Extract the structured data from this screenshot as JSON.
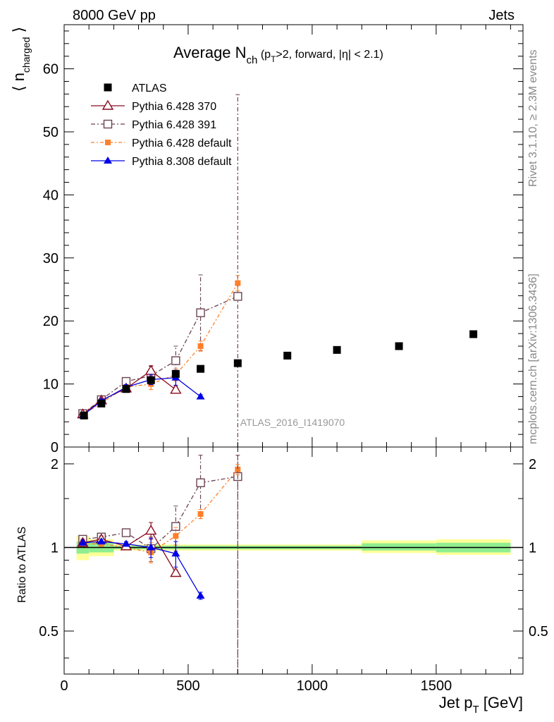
{
  "header": {
    "left": "8000 GeV pp",
    "right": "Jets"
  },
  "side_labels": {
    "rivet": "Rivet 3.1.10, ≥ 2.3M events",
    "mcplots": "mcplots.cern.ch [arXiv:1306.3436]"
  },
  "watermark": "ATLAS_2016_I1419070",
  "colors": {
    "atlas": "#000000",
    "p370": "#8b0a1e",
    "p391": "#6b4452",
    "p6def": "#ff7f2a",
    "p8def": "#0000e6",
    "band_inner": "#90ee90",
    "band_outer": "#ffff99"
  },
  "chart_data": [
    {
      "type": "scatter",
      "title_main": "Average N",
      "title_sub": "ch",
      "title_rest": " (p",
      "title_sub2": "T",
      "title_tail": ">2, forward, |η| < 2.1)",
      "ylabel": "⟨ n",
      "ylabel_sub": "charged",
      "ylabel_close": " ⟩",
      "xlim": [
        0,
        1850
      ],
      "ylim": [
        0,
        67
      ],
      "yticks": [
        0,
        10,
        20,
        30,
        40,
        50,
        60
      ],
      "legend_position": "top-left",
      "series": [
        {
          "name": "ATLAS",
          "key": "atlas",
          "x": [
            80,
            150,
            250,
            350,
            450,
            550,
            700,
            900,
            1100,
            1350,
            1650
          ],
          "y": [
            5.0,
            6.9,
            9.2,
            10.6,
            11.6,
            12.4,
            13.3,
            14.5,
            15.4,
            16.0,
            17.9
          ]
        },
        {
          "name": "Pythia 6.428 370",
          "key": "p370",
          "x": [
            75,
            150,
            250,
            350,
            450
          ],
          "y": [
            5.2,
            7.4,
            9.3,
            12.1,
            9.1
          ],
          "err": [
            0.3,
            0.3,
            0.4,
            0.8,
            0.5
          ]
        },
        {
          "name": "Pythia 6.428 391",
          "key": "p391",
          "x": [
            75,
            150,
            250,
            350,
            450,
            550,
            700
          ],
          "y": [
            5.3,
            7.5,
            10.4,
            11.3,
            13.7,
            21.3,
            23.9
          ],
          "err": [
            0.3,
            0.3,
            0.5,
            1.5,
            2.3,
            6.0,
            32.0
          ]
        },
        {
          "name": "Pythia 6.428 default",
          "key": "p6def",
          "x": [
            75,
            150,
            250,
            350,
            450,
            550,
            700
          ],
          "y": [
            5.1,
            7.0,
            9.5,
            10.0,
            11.5,
            16.0,
            26.0
          ],
          "err": [
            0.2,
            0.3,
            0.4,
            0.9,
            1.0,
            0.8,
            1.2
          ]
        },
        {
          "name": "Pythia 8.308 default",
          "key": "p8def",
          "x": [
            75,
            150,
            250,
            350,
            450,
            550
          ],
          "y": [
            5.0,
            7.3,
            9.5,
            10.7,
            11.0,
            8.0
          ],
          "err": [
            0.2,
            0.3,
            0.4,
            0.8,
            1.2,
            0.3
          ]
        }
      ]
    },
    {
      "type": "scatter",
      "ylabel": "Ratio to ATLAS",
      "xlabel": "Jet p",
      "xlabel_sub": "T",
      "xlabel_unit": " [GeV]",
      "xlim": [
        0,
        1850
      ],
      "ylim": [
        0.35,
        2.3
      ],
      "xticks": [
        0,
        500,
        1000,
        1500
      ],
      "xtick_labels": [
        "0",
        "500",
        "1000",
        "1500"
      ],
      "yticks": [
        0.5,
        1,
        2
      ],
      "ytick_labels": [
        "0.5",
        "1",
        "2"
      ],
      "bands": [
        {
          "x0": 50,
          "x1": 100,
          "inner": [
            0.95,
            1.05
          ],
          "outer": [
            0.9,
            1.1
          ]
        },
        {
          "x0": 100,
          "x1": 200,
          "inner": [
            0.96,
            1.04
          ],
          "outer": [
            0.93,
            1.07
          ]
        },
        {
          "x0": 200,
          "x1": 1200,
          "inner": [
            0.985,
            1.015
          ],
          "outer": [
            0.975,
            1.025
          ]
        },
        {
          "x0": 1200,
          "x1": 1500,
          "inner": [
            0.975,
            1.035
          ],
          "outer": [
            0.955,
            1.06
          ]
        },
        {
          "x0": 1500,
          "x1": 1800,
          "inner": [
            0.96,
            1.04
          ],
          "outer": [
            0.94,
            1.07
          ]
        }
      ],
      "series": [
        {
          "key": "p370",
          "x": [
            75,
            150,
            250,
            350,
            450
          ],
          "y": [
            1.04,
            1.07,
            1.01,
            1.15,
            0.81
          ],
          "err": [
            0.03,
            0.03,
            0.03,
            0.08,
            0.02
          ]
        },
        {
          "key": "p391",
          "x": [
            75,
            150,
            250,
            350,
            450,
            550,
            700
          ],
          "y": [
            1.07,
            1.09,
            1.13,
            0.99,
            1.19,
            1.71,
            1.8
          ],
          "err": [
            0.03,
            0.03,
            0.03,
            0.1,
            0.22,
            0.44,
            2.5
          ]
        },
        {
          "key": "p6def",
          "x": [
            75,
            150,
            250,
            350,
            450,
            550,
            700
          ],
          "y": [
            1.03,
            1.03,
            1.0,
            0.96,
            1.1,
            1.32,
            1.91
          ],
          "err": [
            0.02,
            0.02,
            0.02,
            0.08,
            0.08,
            0.05,
            0.08
          ]
        },
        {
          "key": "p8def",
          "x": [
            75,
            150,
            250,
            350,
            450,
            550
          ],
          "y": [
            1.04,
            1.05,
            1.03,
            1.0,
            0.95,
            0.67
          ],
          "err": [
            0.02,
            0.02,
            0.02,
            0.08,
            0.1,
            0.02
          ]
        }
      ]
    }
  ]
}
